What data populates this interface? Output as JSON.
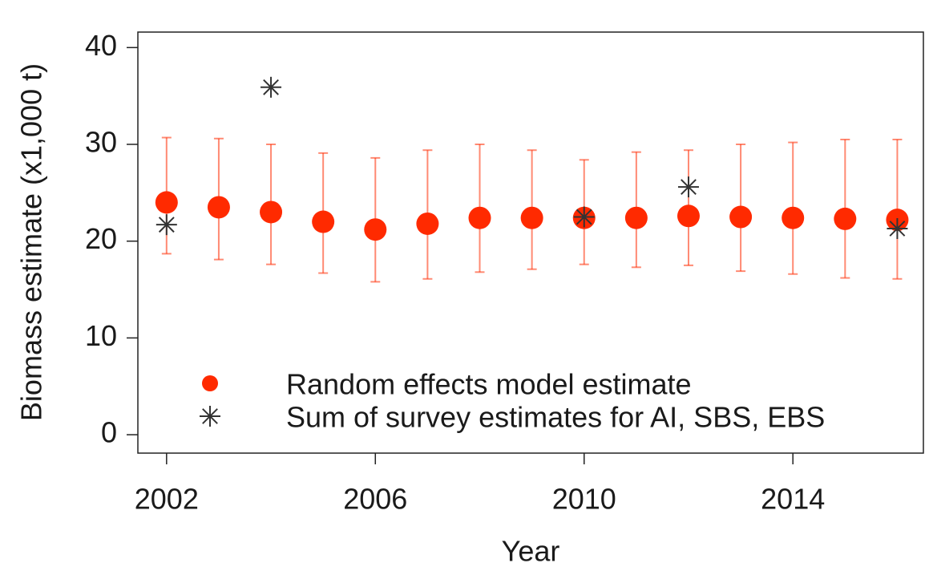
{
  "chart_data": {
    "type": "scatter",
    "x_label": "Year",
    "y_label": "Biomass estimate (x1,000 t)",
    "xlim": [
      2001.45,
      2016.5
    ],
    "ylim": [
      -1.9,
      41.6
    ],
    "xticks": [
      2002,
      2006,
      2010,
      2014
    ],
    "yticks": [
      0,
      10,
      20,
      30,
      40
    ],
    "legend": "bottom-left",
    "series": [
      {
        "name": "Random effects model estimate",
        "color": "#ff2a00",
        "marker": "dot",
        "x": [
          2002,
          2003,
          2004,
          2005,
          2006,
          2007,
          2008,
          2009,
          2010,
          2011,
          2012,
          2013,
          2014,
          2015,
          2016
        ],
        "values": [
          24.0,
          23.5,
          23.0,
          22.0,
          21.2,
          21.8,
          22.4,
          22.4,
          22.4,
          22.4,
          22.6,
          22.5,
          22.4,
          22.3,
          22.2
        ],
        "lower": [
          18.7,
          18.1,
          17.6,
          16.7,
          15.8,
          16.1,
          16.8,
          17.1,
          17.6,
          17.3,
          17.5,
          16.9,
          16.6,
          16.2,
          16.1
        ],
        "upper": [
          30.7,
          30.6,
          30.0,
          29.1,
          28.6,
          29.4,
          30.0,
          29.4,
          28.4,
          29.2,
          29.4,
          30.0,
          30.2,
          30.5,
          30.5
        ]
      },
      {
        "name": "Sum of survey estimates for AI, SBS, EBS",
        "color": "#333333",
        "marker": "star",
        "x": [
          2002,
          2004,
          2010,
          2012,
          2016
        ],
        "values": [
          21.7,
          35.9,
          22.5,
          25.6,
          21.3
        ]
      }
    ]
  }
}
